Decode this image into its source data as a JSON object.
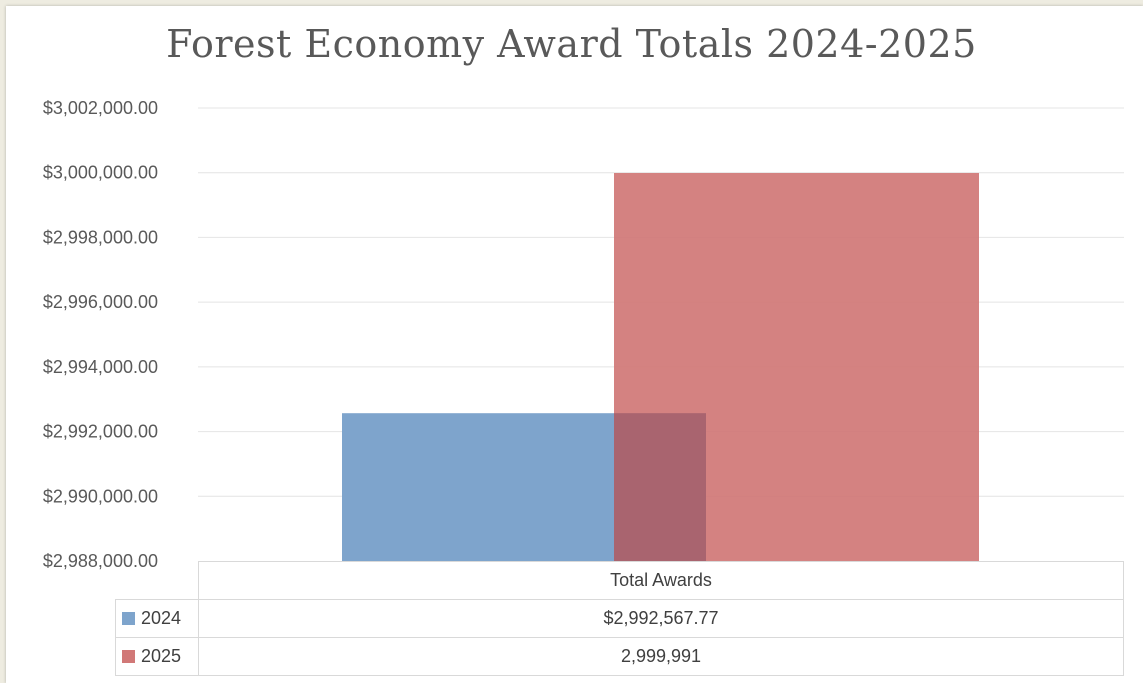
{
  "chart_data": {
    "type": "bar",
    "title": "Forest Economy Award Totals 2024-2025",
    "categories": [
      "Total Awards"
    ],
    "series": [
      {
        "name": "2024",
        "values": [
          2992567.77
        ],
        "color": "#7ea4cc",
        "table_label": "$2,992,567.77"
      },
      {
        "name": "2025",
        "values": [
          2999991
        ],
        "color": "#d17877",
        "table_label": "2,999,991"
      }
    ],
    "ylim": [
      2988000,
      3002000
    ],
    "yticks": [
      2988000,
      2990000,
      2992000,
      2994000,
      2996000,
      2998000,
      3000000,
      3002000
    ],
    "ytick_labels": [
      "$2,988,000.00",
      "$2,990,000.00",
      "$2,992,000.00",
      "$2,994,000.00",
      "$2,996,000.00",
      "$2,998,000.00",
      "$3,000,000.00",
      "$3,002,000.00"
    ],
    "xlabel": "",
    "ylabel": "",
    "grid": true,
    "legend": "data-table",
    "overlap": "overlapping bars (2024 behind 2025)"
  }
}
